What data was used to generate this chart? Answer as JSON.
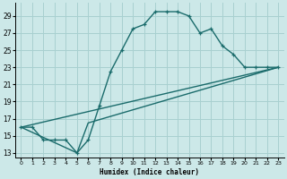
{
  "xlabel": "Humidex (Indice chaleur)",
  "background_color": "#cce8e8",
  "grid_color": "#a8d0d0",
  "line_color": "#1a6b6b",
  "xlim": [
    -0.5,
    23.5
  ],
  "ylim": [
    12.5,
    30.5
  ],
  "xticks": [
    0,
    1,
    2,
    3,
    4,
    5,
    6,
    7,
    8,
    9,
    10,
    11,
    12,
    13,
    14,
    15,
    16,
    17,
    18,
    19,
    20,
    21,
    22,
    23
  ],
  "yticks": [
    13,
    15,
    17,
    19,
    21,
    23,
    25,
    27,
    29
  ],
  "line1_x": [
    0,
    1,
    2,
    3,
    4,
    5,
    6,
    7,
    8,
    9,
    10,
    11,
    12,
    13,
    14,
    15,
    16,
    17,
    18,
    19,
    20,
    21,
    22,
    23
  ],
  "line1_y": [
    16.0,
    16.0,
    14.5,
    14.5,
    14.5,
    13.0,
    14.5,
    18.5,
    22.5,
    25.0,
    27.5,
    28.0,
    29.5,
    29.5,
    29.5,
    29.0,
    27.0,
    27.5,
    25.5,
    24.5,
    23.0,
    23.0,
    23.0,
    23.0
  ],
  "line2_x": [
    0,
    23
  ],
  "line2_y": [
    16.0,
    23.0
  ],
  "line3_x": [
    0,
    5,
    6,
    23
  ],
  "line3_y": [
    16.0,
    13.0,
    16.5,
    23.0
  ]
}
